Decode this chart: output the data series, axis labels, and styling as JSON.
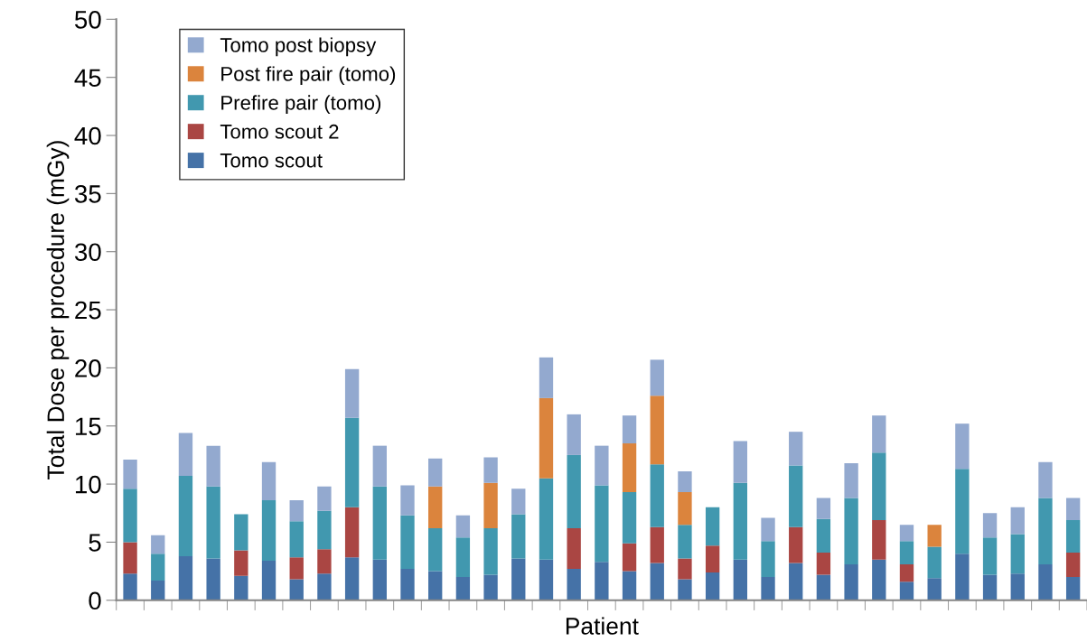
{
  "chart_data": {
    "type": "bar",
    "stacked": true,
    "xlabel": "Patient",
    "ylabel": "Total Dose per procedure (mGy)",
    "categories": [
      null,
      null,
      null,
      null,
      null,
      null,
      null,
      null,
      null,
      null,
      null,
      null,
      null,
      null,
      null,
      null,
      null,
      null,
      null,
      null,
      null,
      null,
      null,
      null,
      null,
      null,
      null,
      null,
      null,
      null,
      null,
      null,
      null,
      null,
      null
    ],
    "series": [
      {
        "name": "Tomo scout",
        "color": "#4572a7",
        "values": [
          2.3,
          1.7,
          3.8,
          3.6,
          2.1,
          3.4,
          1.8,
          2.3,
          3.7,
          3.5,
          2.7,
          2.5,
          2.0,
          2.2,
          3.6,
          3.5,
          2.7,
          3.3,
          2.5,
          3.2,
          1.8,
          2.4,
          3.5,
          2.0,
          3.2,
          2.2,
          3.1,
          3.5,
          1.6,
          1.9,
          4.0,
          2.2,
          2.3,
          3.1,
          2.0
        ]
      },
      {
        "name": "Tomo scout 2",
        "color": "#aa4643",
        "values": [
          2.7,
          0,
          0,
          0,
          2.2,
          0,
          1.9,
          2.1,
          4.3,
          0,
          0,
          0,
          0,
          0,
          0,
          0,
          3.5,
          0,
          2.4,
          3.1,
          1.8,
          2.3,
          0,
          0,
          3.1,
          1.9,
          0,
          3.4,
          1.5,
          0,
          0,
          0,
          0,
          0,
          2.1
        ]
      },
      {
        "name": "Prefire pair (tomo)",
        "color": "#4198af",
        "values": [
          4.6,
          2.3,
          6.9,
          6.2,
          3.1,
          5.2,
          3.1,
          3.3,
          7.7,
          6.3,
          4.6,
          3.7,
          3.4,
          4.0,
          3.8,
          7.0,
          6.3,
          6.6,
          4.4,
          5.4,
          2.9,
          3.3,
          6.6,
          3.1,
          5.3,
          2.9,
          5.7,
          5.8,
          2.0,
          2.7,
          7.3,
          3.2,
          3.4,
          5.7,
          2.8
        ]
      },
      {
        "name": "Post fire pair (tomo)",
        "color": "#db843d",
        "values": [
          0,
          0,
          0,
          0,
          0,
          0,
          0,
          0,
          0,
          0,
          0,
          3.6,
          0,
          3.9,
          0,
          6.9,
          0,
          0,
          4.2,
          5.9,
          2.8,
          0,
          0,
          0,
          0,
          0,
          0,
          0,
          0,
          1.9,
          0,
          0,
          0,
          0,
          0
        ]
      },
      {
        "name": "Tomo post biopsy",
        "color": "#93a9cf",
        "values": [
          2.5,
          1.6,
          3.7,
          3.5,
          0,
          3.3,
          1.8,
          2.1,
          4.2,
          3.5,
          2.6,
          2.4,
          1.9,
          2.2,
          2.2,
          3.5,
          3.5,
          3.4,
          2.4,
          3.1,
          1.8,
          0,
          3.6,
          2.0,
          2.9,
          1.8,
          3.0,
          3.2,
          1.4,
          0,
          3.9,
          2.1,
          2.3,
          3.1,
          1.9
        ]
      }
    ],
    "ylim": [
      0,
      50
    ],
    "yticks": [
      0,
      5,
      10,
      15,
      20,
      25,
      30,
      35,
      40,
      45,
      50
    ],
    "grid": false,
    "legend": "top left"
  }
}
